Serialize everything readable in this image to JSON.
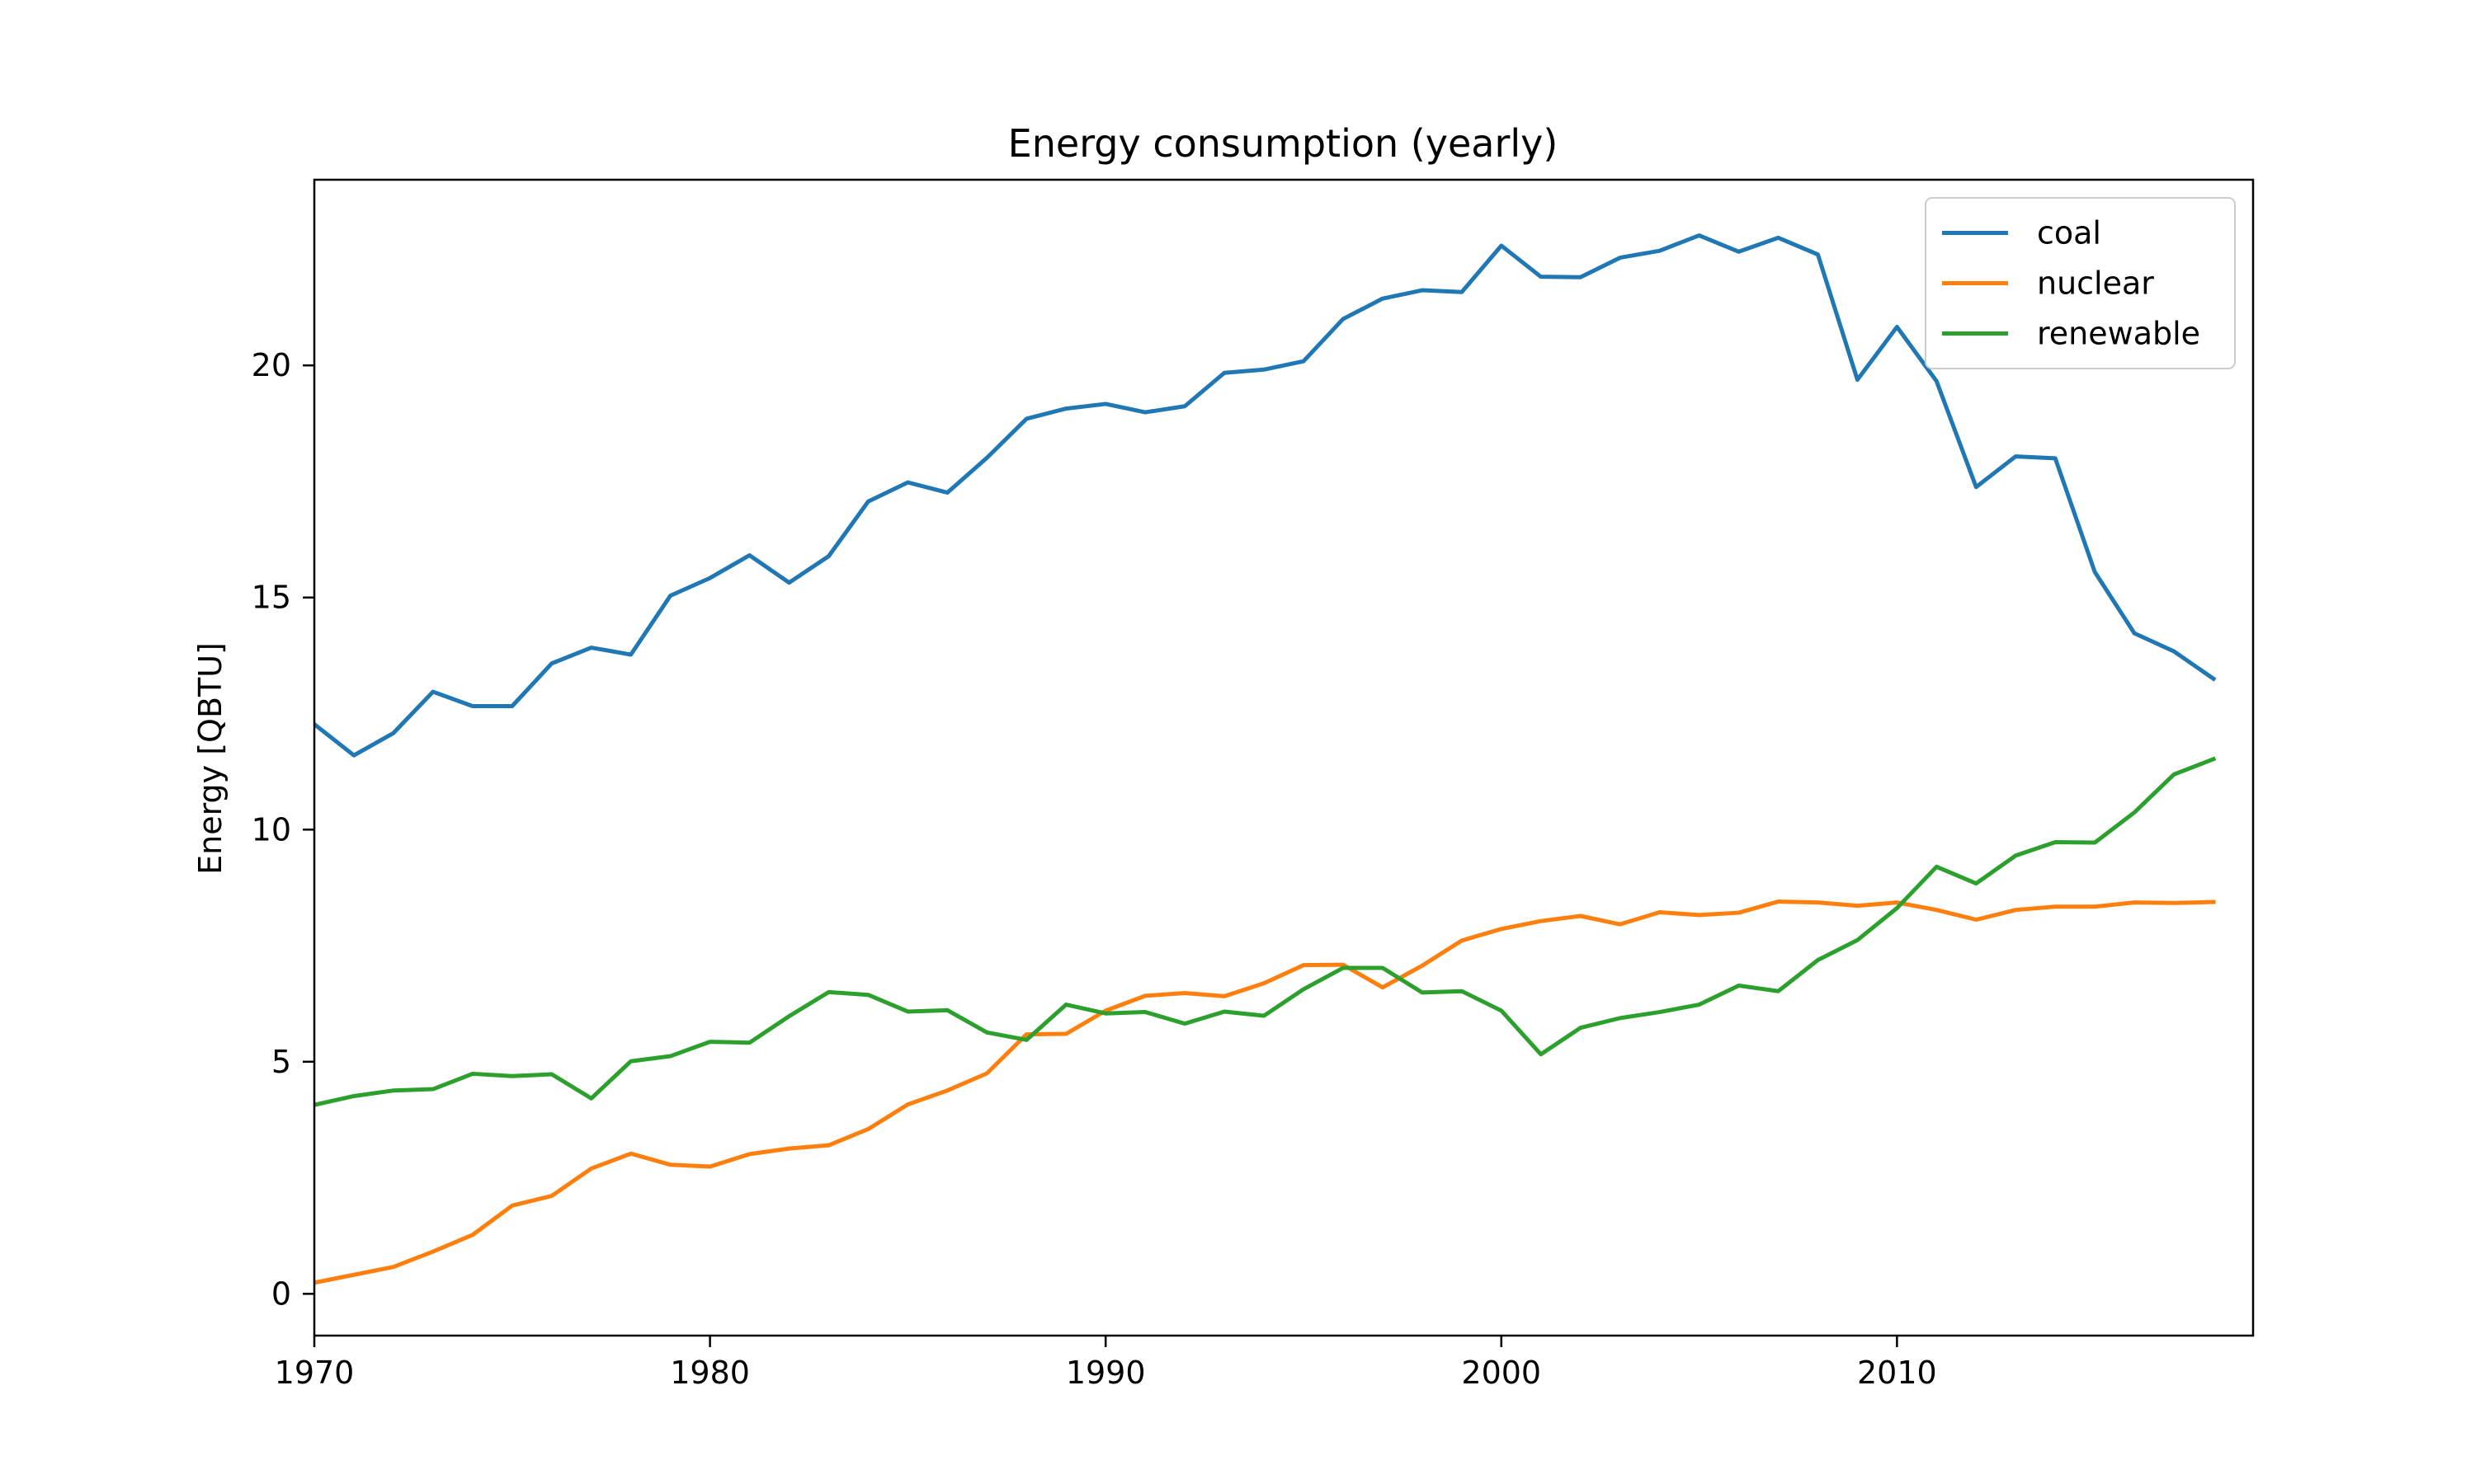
{
  "chart_data": {
    "type": "line",
    "title": "Energy consumption (yearly)",
    "xlabel": "",
    "ylabel": "Energy [QBTU]",
    "xlim": [
      1970,
      2019
    ],
    "ylim": [
      -0.9,
      24.0
    ],
    "x_ticks": [
      1970,
      1980,
      1990,
      2000,
      2010
    ],
    "y_ticks": [
      0,
      5,
      10,
      15,
      20
    ],
    "grid": false,
    "legend_position": "top-right",
    "x": [
      1970,
      1971,
      1972,
      1973,
      1974,
      1975,
      1976,
      1977,
      1978,
      1979,
      1980,
      1981,
      1982,
      1983,
      1984,
      1985,
      1986,
      1987,
      1988,
      1989,
      1990,
      1991,
      1992,
      1993,
      1994,
      1995,
      1996,
      1997,
      1998,
      1999,
      2000,
      2001,
      2002,
      2003,
      2004,
      2005,
      2006,
      2007,
      2008,
      2009,
      2010,
      2011,
      2012,
      2013,
      2014,
      2015,
      2016,
      2017,
      2018
    ],
    "series": [
      {
        "name": "coal",
        "color": "#1f77b4",
        "values": [
          12.27,
          11.6,
          12.08,
          12.97,
          12.66,
          12.66,
          13.58,
          13.92,
          13.77,
          15.04,
          15.42,
          15.91,
          15.32,
          15.89,
          17.07,
          17.48,
          17.26,
          18.01,
          18.85,
          19.07,
          19.17,
          18.99,
          19.12,
          19.84,
          19.91,
          20.09,
          21.0,
          21.44,
          21.62,
          21.58,
          22.58,
          21.91,
          21.9,
          22.32,
          22.47,
          22.8,
          22.45,
          22.75,
          22.39,
          19.69,
          20.83,
          19.66,
          17.38,
          18.04,
          18.0,
          15.55,
          14.23,
          13.84,
          13.25
        ]
      },
      {
        "name": "nuclear",
        "color": "#ff7f0e",
        "values": [
          0.24,
          0.41,
          0.58,
          0.91,
          1.27,
          1.9,
          2.11,
          2.7,
          3.02,
          2.78,
          2.74,
          3.01,
          3.13,
          3.2,
          3.55,
          4.08,
          4.38,
          4.75,
          5.59,
          5.6,
          6.1,
          6.42,
          6.48,
          6.41,
          6.69,
          7.08,
          7.09,
          6.6,
          7.07,
          7.61,
          7.86,
          8.03,
          8.14,
          7.96,
          8.22,
          8.16,
          8.21,
          8.45,
          8.43,
          8.36,
          8.43,
          8.27,
          8.06,
          8.27,
          8.34,
          8.34,
          8.43,
          8.42,
          8.44
        ]
      },
      {
        "name": "renewable",
        "color": "#2ca02c",
        "values": [
          4.07,
          4.26,
          4.38,
          4.41,
          4.74,
          4.69,
          4.73,
          4.21,
          5.01,
          5.12,
          5.43,
          5.41,
          5.98,
          6.5,
          6.44,
          6.08,
          6.11,
          5.63,
          5.47,
          6.23,
          6.04,
          6.07,
          5.82,
          6.08,
          5.99,
          6.56,
          7.02,
          7.02,
          6.49,
          6.52,
          6.1,
          5.16,
          5.73,
          5.94,
          6.07,
          6.23,
          6.64,
          6.52,
          7.19,
          7.62,
          8.31,
          9.2,
          8.84,
          9.44,
          9.73,
          9.72,
          10.37,
          11.19,
          11.52
        ]
      }
    ]
  }
}
